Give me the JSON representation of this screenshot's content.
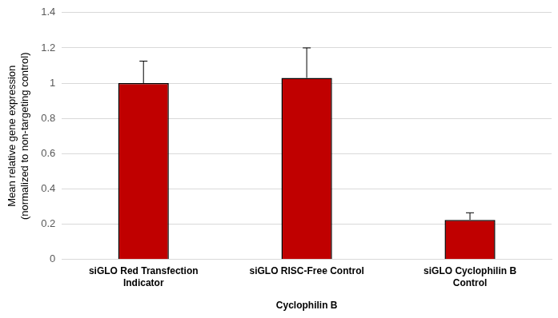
{
  "chart_data": {
    "type": "bar",
    "ylabel": [
      "Mean relative gene expression",
      "(normalized to non-targeting control)"
    ],
    "xlabel": "Cyclophilin B",
    "categories": [
      "siGLO Red Transfection Indicator",
      "siGLO RISC-Free Control",
      "siGLO Cyclophilin B Control"
    ],
    "values": [
      1.0,
      1.03,
      0.225
    ],
    "errors": [
      0.125,
      0.17,
      0.04
    ],
    "color": "#c00000",
    "ylim": [
      0,
      1.4
    ],
    "yticks": [
      0,
      0.2,
      0.4,
      0.6,
      0.8,
      1,
      1.2,
      1.4
    ],
    "grid": true
  }
}
